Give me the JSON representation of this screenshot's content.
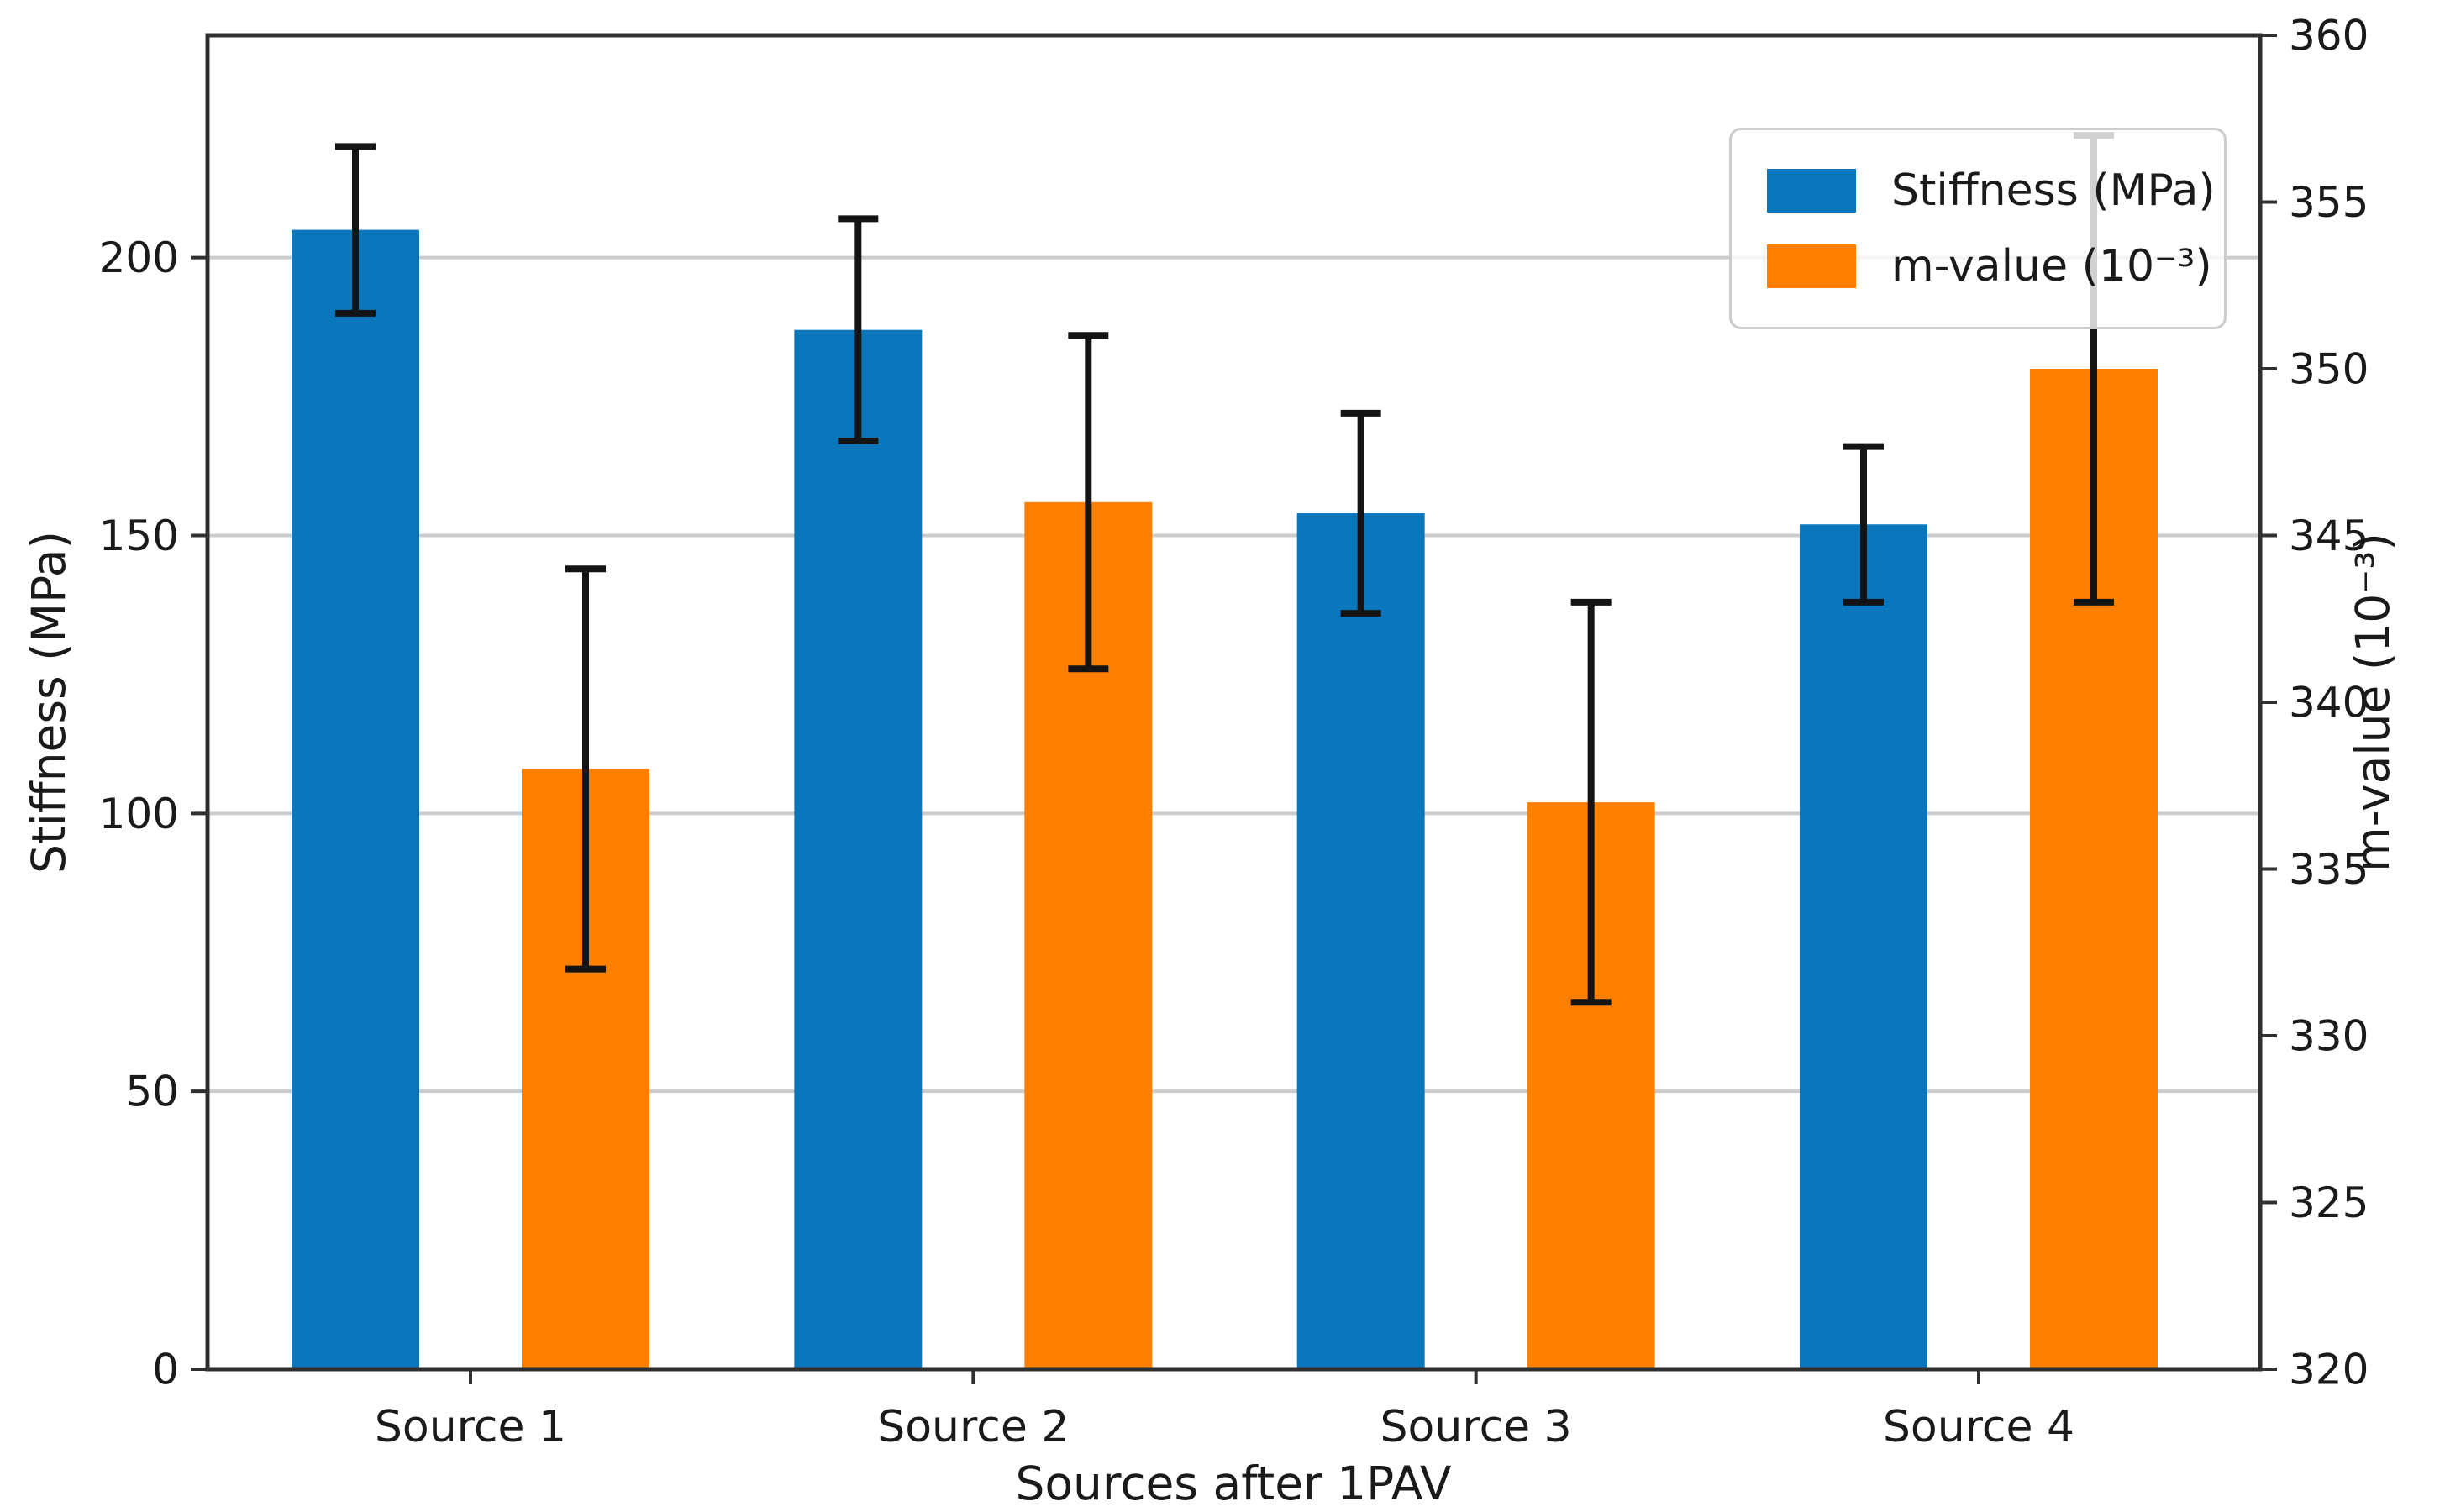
{
  "chart_data": {
    "type": "bar",
    "title": "",
    "xlabel": "Sources after 1PAV",
    "ylabel_left": "Stiffness (MPa)",
    "ylabel_right": "m-value (10⁻³)",
    "categories": [
      "Source 1",
      "Source 2",
      "Source 3",
      "Source 4"
    ],
    "series": [
      {
        "name": "Stiffness (MPa)",
        "axis": "left",
        "color": "#0a76bc",
        "values": [
          205,
          187,
          154,
          152
        ],
        "errors": [
          15,
          20,
          18,
          14
        ]
      },
      {
        "name": "m-value (10⁻³)",
        "axis": "right",
        "color": "#ff8001",
        "values": [
          338,
          346,
          337,
          350
        ],
        "errors": [
          6,
          5,
          6,
          7
        ]
      }
    ],
    "left_axis": {
      "min": 0,
      "max": 240,
      "ticks": [
        0,
        50,
        100,
        150,
        200
      ]
    },
    "right_axis": {
      "min": 320,
      "max": 360,
      "ticks": [
        320,
        325,
        330,
        335,
        340,
        345,
        350,
        355,
        360
      ]
    },
    "grid": {
      "on": true,
      "axis": "left",
      "color": "#cccccc"
    },
    "legend": {
      "position": "upper right"
    },
    "style": {
      "spine_color": "#2f2f2f",
      "error_bar_color": "#141414",
      "text_color": "#1a1a1a"
    }
  }
}
